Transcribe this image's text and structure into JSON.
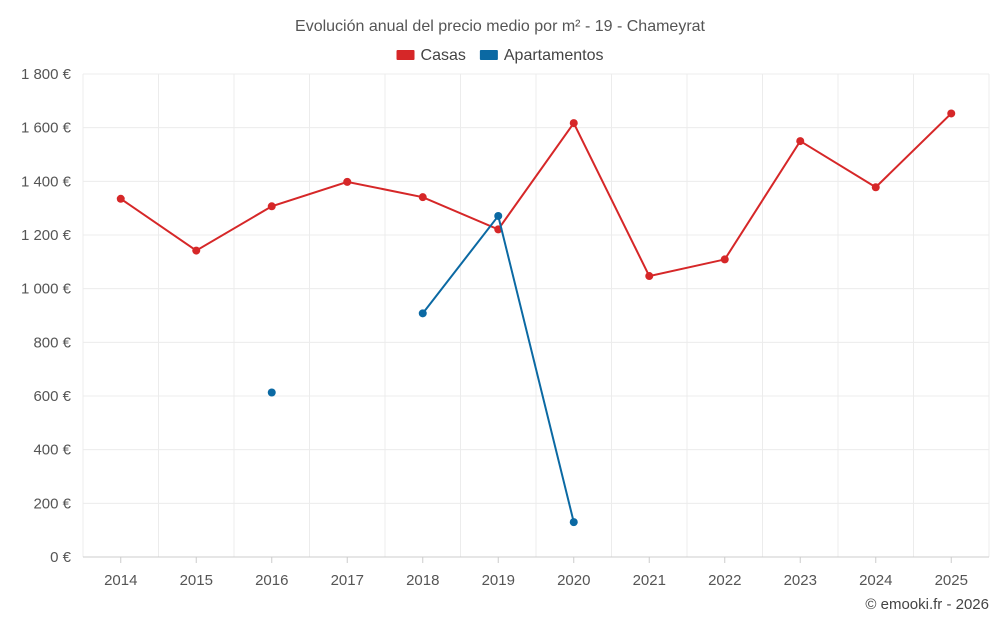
{
  "chart_data": {
    "type": "line",
    "title": "Evolución anual del precio medio por m² - 19 - Chameyrat",
    "categories": [
      "2014",
      "2015",
      "2016",
      "2017",
      "2018",
      "2019",
      "2020",
      "2021",
      "2022",
      "2023",
      "2024",
      "2025"
    ],
    "ylim": [
      0,
      1800
    ],
    "yticks": [
      0,
      200,
      400,
      600,
      800,
      1000,
      1200,
      1400,
      1600,
      1800
    ],
    "ytick_labels": [
      "0 €",
      "200 €",
      "400 €",
      "600 €",
      "800 €",
      "1 000 €",
      "1 200 €",
      "1 400 €",
      "1 600 €",
      "1 800 €"
    ],
    "series": [
      {
        "name": "Casas",
        "color": "#d62728",
        "values": [
          1335,
          1142,
          1307,
          1398,
          1341,
          1221,
          1617,
          1047,
          1109,
          1550,
          1378,
          1653
        ]
      },
      {
        "name": "Apartamentos",
        "color": "#0b69a3",
        "values": [
          null,
          null,
          613,
          null,
          908,
          1271,
          130,
          null,
          null,
          null,
          null,
          null
        ]
      }
    ],
    "legend_position": "top-center",
    "grid": true
  },
  "credit": "© emooki.fr - 2026"
}
